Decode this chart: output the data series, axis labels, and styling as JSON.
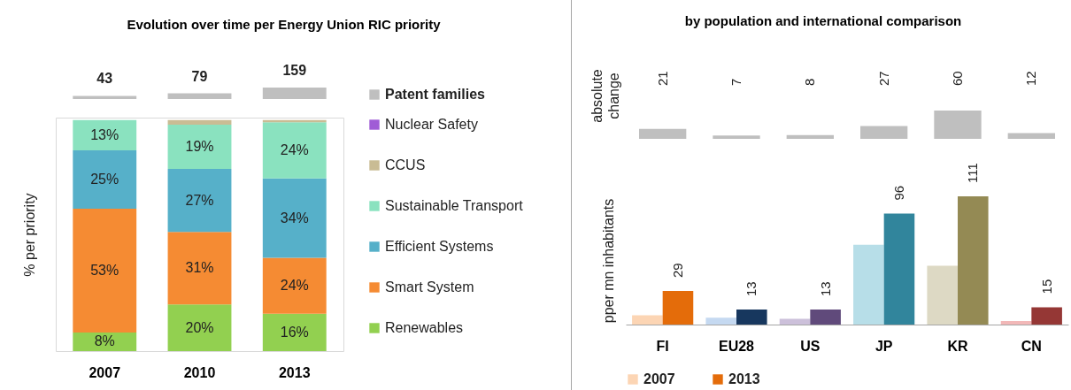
{
  "chart_data": [
    {
      "type": "bar",
      "title": "Evolution over time per Energy Union RIC priority",
      "categories": [
        null,
        null,
        null
      ],
      "series": [
        {
          "name": "Patent families",
          "color": "#bfbfbf",
          "values": [
            43,
            79,
            159
          ]
        }
      ],
      "data_labels": true,
      "tick_labels": false,
      "legend": "right"
    },
    {
      "type": "bar",
      "stacked": true,
      "categories": [
        "2007",
        "2010",
        "2013"
      ],
      "ylabel": "% per priority",
      "ylim": [
        0,
        100
      ],
      "tick_labels": "x",
      "legend": "right",
      "series": [
        {
          "name": "Renewables",
          "color": "#92d050",
          "values": [
            8,
            20,
            16
          ],
          "value_labels": [
            "8%",
            "20%",
            "16%"
          ]
        },
        {
          "name": "Smart System",
          "color": "#f58b33",
          "values": [
            53,
            31,
            24
          ],
          "value_labels": [
            "53%",
            "31%",
            "24%"
          ]
        },
        {
          "name": "Efficient Systems",
          "color": "#56b0c9",
          "values": [
            25,
            27,
            34
          ],
          "value_labels": [
            "25%",
            "27%",
            "34%"
          ]
        },
        {
          "name": "Sustainable Transport",
          "color": "#8ae2bf",
          "values": [
            13,
            19,
            24
          ],
          "value_labels": [
            "13%",
            "19%",
            "24%"
          ]
        },
        {
          "name": "CCUS",
          "color": "#c9bc94",
          "values": [
            0,
            2,
            1
          ],
          "value_labels": [
            null,
            null,
            null
          ]
        },
        {
          "name": "Nuclear Safety",
          "color": "#a05cd6",
          "values": [
            0,
            0,
            0
          ],
          "value_labels": [
            null,
            null,
            null
          ]
        }
      ]
    },
    {
      "type": "bar",
      "title": "by population and international comparison",
      "categories": [
        null,
        null,
        null,
        null,
        null,
        null
      ],
      "ylabel": "absolute change",
      "tick_labels": false,
      "data_labels": true,
      "series": [
        {
          "color": "#bfbfbf",
          "values": [
            21,
            7,
            8,
            27,
            60,
            12
          ]
        }
      ]
    },
    {
      "type": "bar",
      "categories": [
        "FI",
        "EU28",
        "US",
        "JP",
        "KR",
        "CN"
      ],
      "ylabel": "pper mn inhabitants",
      "tick_labels": "x",
      "legend": "bottom",
      "series": [
        {
          "name": "2007",
          "color": "#fcd5b4",
          "colors": [
            "#fcd5b4",
            "#c5d9f1",
            "#ccc0da",
            "#b7dee8",
            "#ddd9c4",
            "#f2b8b8"
          ],
          "values": [
            8,
            6,
            5,
            69,
            51,
            3
          ]
        },
        {
          "name": "2013",
          "color": "#e46c0a",
          "colors": [
            "#e46c0a",
            "#17375e",
            "#604a7b",
            "#31859c",
            "#948a54",
            "#953735"
          ],
          "values": [
            29,
            13,
            13,
            96,
            111,
            15
          ],
          "value_labels": [
            "29",
            "13",
            "13",
            "96",
            "111",
            "15"
          ]
        }
      ]
    }
  ]
}
